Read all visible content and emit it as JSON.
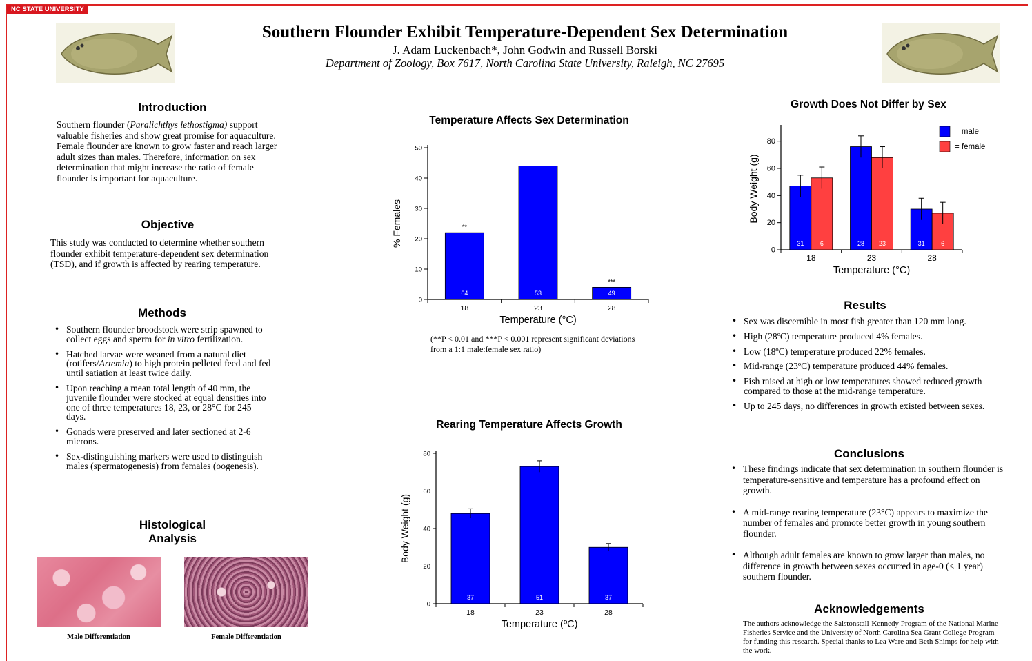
{
  "header": {
    "badge": "NC STATE UNIVERSITY",
    "title": "Southern Flounder Exhibit Temperature-Dependent Sex Determination",
    "authors": "J. Adam Luckenbach*, John Godwin and Russell Borski",
    "department": "Department of Zoology, Box 7617, North Carolina State University, Raleigh, NC 27695"
  },
  "introduction": {
    "heading": "Introduction",
    "text_pre": "Southern flounder (",
    "species": "Paralichthys lethostigma)",
    "text_post": " support valuable fisheries and show great promise for aquaculture.  Female flounder are known to grow faster and reach larger adult sizes than males. Therefore, information on sex determination that might increase the ratio of female flounder is important for aquaculture."
  },
  "objective": {
    "heading": "Objective",
    "text": "This study was conducted to determine whether southern flounder exhibit temperature-dependent sex determination (TSD), and if growth is affected by rearing temperature."
  },
  "methods": {
    "heading": "Methods",
    "item1_pre": "Southern flounder broodstock were strip spawned to collect eggs and sperm for ",
    "item1_em": "in vitro",
    "item1_post": " fertilization.",
    "item2_pre": "Hatched larvae were weaned from a natural diet (rotifers/",
    "item2_em": "Artemia",
    "item2_post": ") to high protein pelleted feed and fed until satiation at least twice daily.",
    "item3": "Upon reaching a mean total length of 40 mm, the juvenile flounder were stocked at equal densities into one of three temperatures 18, 23, or 28°C for 245 days.",
    "item4": "Gonads were preserved and later sectioned at 2-6 microns.",
    "item5": "Sex-distinguishing markers were used to distinguish males (spermatogenesis) from females (oogenesis)."
  },
  "histology": {
    "heading_line1": "Histological",
    "heading_line2": "Analysis",
    "male_caption": "Male Differentiation",
    "female_caption": "Female Differentiation"
  },
  "results": {
    "heading": "Results",
    "items": [
      "Sex was discernible in most fish greater than 120 mm long.",
      "High (28ºC) temperature produced 4% females.",
      "Low (18ºC) temperature produced 22% females.",
      "Mid-range (23ºC) temperature produced 44% females.",
      "Fish raised at high or low temperatures showed reduced growth compared to those at the mid-range temperature.",
      "Up to 245 days, no differences in growth existed between sexes."
    ]
  },
  "conclusions": {
    "heading": "Conclusions",
    "items": [
      "These findings indicate that sex determination in southern flounder is temperature-sensitive and temperature has a profound effect on growth.",
      "A mid-range rearing temperature (23°C) appears to maximize the number of females and promote better growth in young southern flounder.",
      "Although adult females are known to grow larger than males, no difference in growth between sexes occurred in age-0 (< 1 year) southern flounder."
    ]
  },
  "acknowledgements": {
    "heading": "Acknowledgements",
    "text": "The authors acknowledge the Salstonstall-Kennedy Program of the National Marine Fisheries Service and the University of North Carolina Sea Grant College Program for funding this research.  Special thanks to Lea Ware and Beth Shimps for help with the work."
  },
  "colors": {
    "male": "#0000ff",
    "female": "#ff4040",
    "accent": "#d8171f"
  },
  "chart_data": [
    {
      "id": "sex",
      "type": "bar",
      "title": "Temperature Affects Sex Determination",
      "xlabel": "Temperature (°C)",
      "ylabel": "% Females",
      "categories": [
        "18",
        "23",
        "28"
      ],
      "values": [
        22,
        44,
        4
      ],
      "bar_labels": [
        "64",
        "53",
        "49"
      ],
      "significance": [
        "**",
        "",
        "***"
      ],
      "ylim": [
        0,
        50
      ],
      "yticks": [
        0,
        10,
        20,
        30,
        40,
        50
      ],
      "note": "(**P < 0.01 and ***P < 0.001 represent significant deviations from a 1:1 male:female sex ratio)"
    },
    {
      "id": "growth",
      "type": "bar",
      "title": "Rearing Temperature Affects Growth",
      "xlabel": "Temperature (ºC)",
      "ylabel": "Body Weight (g)",
      "categories": [
        "18",
        "23",
        "28"
      ],
      "values": [
        48,
        73,
        30
      ],
      "errors": [
        2.5,
        3,
        2
      ],
      "bar_labels": [
        "37",
        "51",
        "37"
      ],
      "ylim": [
        0,
        80
      ],
      "yticks": [
        0,
        20,
        40,
        60,
        80
      ]
    },
    {
      "id": "sexgrowth",
      "type": "bar",
      "title": "Growth Does Not Differ by Sex",
      "xlabel": "Temperature (°C)",
      "ylabel": "Body Weight (g)",
      "categories": [
        "18",
        "23",
        "28"
      ],
      "series": [
        {
          "name": "= male",
          "values": [
            47,
            76,
            30
          ],
          "errors": [
            8,
            8,
            8
          ],
          "labels": [
            "31",
            "28",
            "31"
          ]
        },
        {
          "name": "= female",
          "values": [
            53,
            68,
            27
          ],
          "errors": [
            8,
            8,
            8
          ],
          "labels": [
            "6",
            "23",
            "6"
          ]
        }
      ],
      "ylim": [
        0,
        90
      ],
      "yticks": [
        0,
        20,
        40,
        60,
        80
      ],
      "legend": "top-right"
    }
  ]
}
